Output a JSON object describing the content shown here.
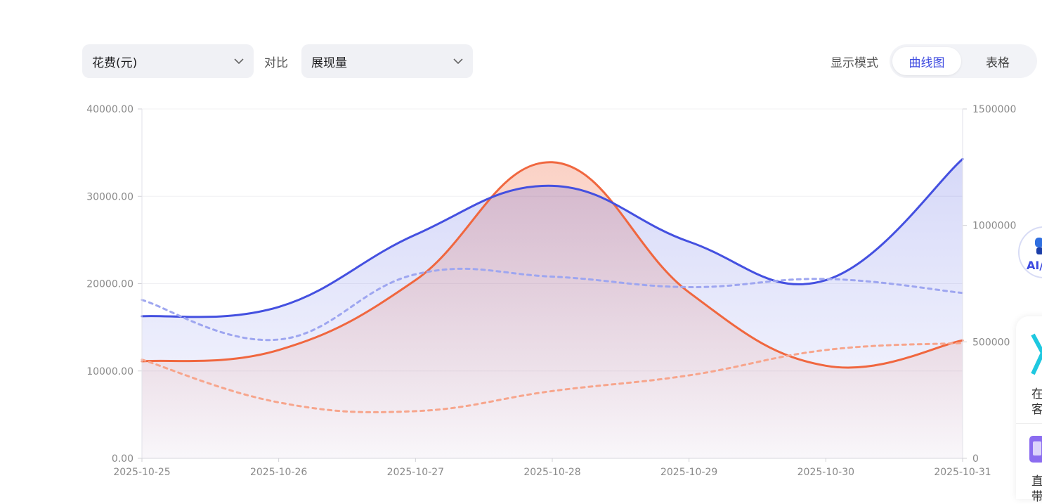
{
  "controls": {
    "metric_primary": "花费(元)",
    "compare_label": "对比",
    "metric_secondary": "展现量",
    "display_mode_label": "显示模式",
    "mode_options": [
      "曲线图",
      "表格"
    ],
    "mode_selected": "曲线图"
  },
  "side": {
    "ai_badge": "AI/",
    "card_line1": "在",
    "card_line2": "客",
    "card_line3": "直",
    "card_line4": "带"
  },
  "colors": {
    "spend": "#f0673f",
    "impressions": "#4450e0",
    "accent": "#3d4ae0"
  },
  "chart_data": {
    "type": "line",
    "x": [
      "2025-10-25",
      "2025-10-26",
      "2025-10-27",
      "2025-10-28",
      "2025-10-29",
      "2025-10-30",
      "2025-10-31"
    ],
    "y_left": {
      "ylim": [
        0,
        40000
      ],
      "ticks": [
        "0.00",
        "10000.00",
        "20000.00",
        "30000.00",
        "40000.00"
      ]
    },
    "y_right": {
      "ylim": [
        0,
        1500000
      ],
      "ticks": [
        "0",
        "500000",
        "1000000",
        "1500000"
      ]
    },
    "grid": true,
    "series": [
      {
        "key": "spend",
        "axis": "left",
        "style": "solid",
        "fill": true,
        "color": "#f0673f",
        "values": [
          11100,
          12400,
          20400,
          33900,
          19000,
          10600,
          13500
        ]
      },
      {
        "key": "impressions",
        "axis": "right",
        "style": "solid",
        "fill": true,
        "color": "#4450e0",
        "values": [
          610000,
          650000,
          960000,
          1170000,
          930000,
          765000,
          1285000
        ]
      },
      {
        "key": "spend_compare",
        "axis": "left",
        "style": "dashed",
        "fill": false,
        "color": "#f7a58c",
        "values": [
          11300,
          6400,
          5400,
          7700,
          9500,
          12400,
          13200
        ]
      },
      {
        "key": "impressions_compare",
        "axis": "right",
        "style": "dashed",
        "fill": false,
        "color": "#9ea6f0",
        "values": [
          680000,
          510000,
          790000,
          780000,
          735000,
          770000,
          710000
        ]
      }
    ]
  }
}
